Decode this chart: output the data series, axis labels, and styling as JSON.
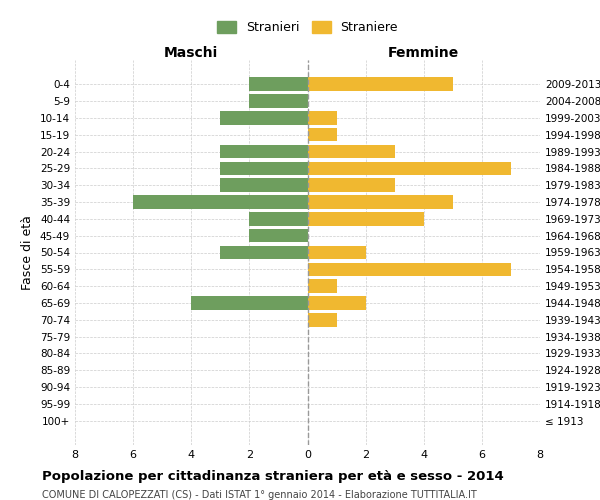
{
  "age_groups": [
    "100+",
    "95-99",
    "90-94",
    "85-89",
    "80-84",
    "75-79",
    "70-74",
    "65-69",
    "60-64",
    "55-59",
    "50-54",
    "45-49",
    "40-44",
    "35-39",
    "30-34",
    "25-29",
    "20-24",
    "15-19",
    "10-14",
    "5-9",
    "0-4"
  ],
  "birth_years": [
    "≤ 1913",
    "1914-1918",
    "1919-1923",
    "1924-1928",
    "1929-1933",
    "1934-1938",
    "1939-1943",
    "1944-1948",
    "1949-1953",
    "1954-1958",
    "1959-1963",
    "1964-1968",
    "1969-1973",
    "1974-1978",
    "1979-1983",
    "1984-1988",
    "1989-1993",
    "1994-1998",
    "1999-2003",
    "2004-2008",
    "2009-2013"
  ],
  "maschi": [
    0,
    0,
    0,
    0,
    0,
    0,
    0,
    4,
    0,
    0,
    3,
    2,
    2,
    6,
    3,
    3,
    3,
    0,
    3,
    2,
    2
  ],
  "femmine": [
    0,
    0,
    0,
    0,
    0,
    0,
    1,
    2,
    1,
    7,
    2,
    0,
    4,
    5,
    3,
    7,
    3,
    1,
    1,
    0,
    5
  ],
  "male_color": "#6e9e5e",
  "female_color": "#f0b830",
  "background_color": "#ffffff",
  "grid_color": "#cccccc",
  "title": "Popolazione per cittadinanza straniera per età e sesso - 2014",
  "subtitle": "COMUNE DI CALOPEZZATI (CS) - Dati ISTAT 1° gennaio 2014 - Elaborazione TUTTITALIA.IT",
  "xlabel_left": "Maschi",
  "xlabel_right": "Femmine",
  "ylabel": "Fasce di età",
  "legend_male": "Stranieri",
  "legend_female": "Straniere",
  "xlim": 8,
  "bar_height": 0.8
}
